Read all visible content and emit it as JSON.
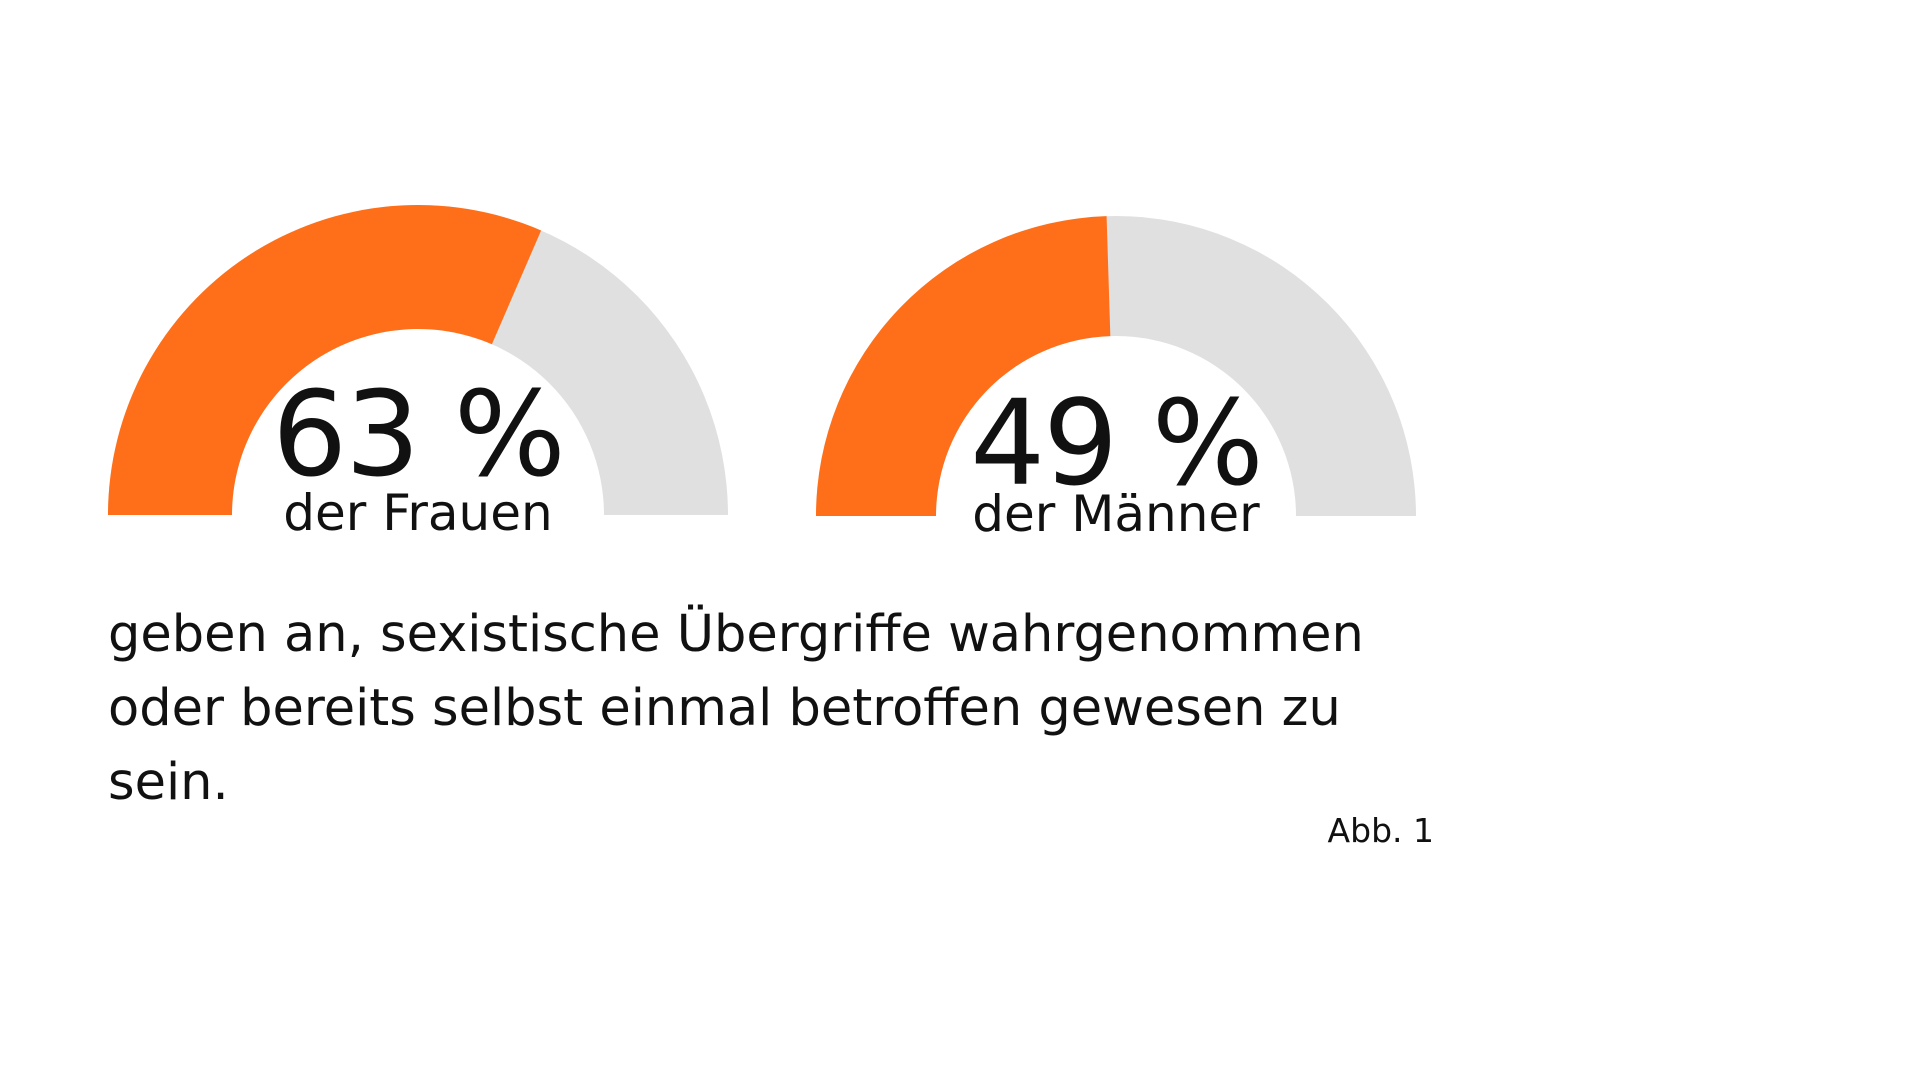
{
  "colors": {
    "value_fill": "#ff6f1a",
    "rest_fill": "#e0e0e0",
    "text": "#111111",
    "background": "#ffffff"
  },
  "chart_data": [
    {
      "type": "gauge",
      "value_percent": 63,
      "value_label": "63 %",
      "category_label": "der Frauen"
    },
    {
      "type": "gauge",
      "value_percent": 49,
      "value_label": "49 %",
      "category_label": "der Männer"
    }
  ],
  "description": "geben an, sexistische Übergriffe wahrgenommen oder bereits selbst einmal betroffen gewesen zu sein.",
  "figure_note": "Abb. 1"
}
